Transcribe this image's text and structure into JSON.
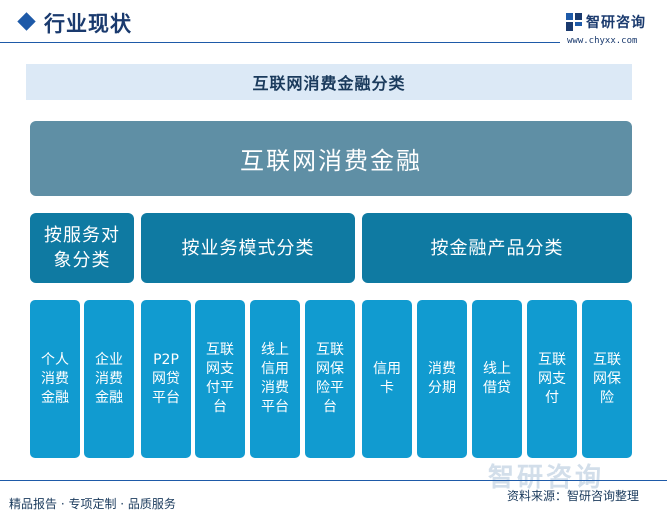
{
  "header": {
    "title": "行业现状",
    "logo_name": "智研咨询",
    "logo_url": "www.chyxx.com"
  },
  "banner": {
    "title": "互联网消费金融分类"
  },
  "root": {
    "label": "互联网消费金融"
  },
  "categories": [
    {
      "label": "按服务对象分类"
    },
    {
      "label": "按业务模式分类"
    },
    {
      "label": "按金融产品分类"
    }
  ],
  "leaves": [
    {
      "label": "个人消费金融"
    },
    {
      "label": "企业消费金融"
    },
    {
      "label": "P2P网贷平台"
    },
    {
      "label": "互联网支付平台"
    },
    {
      "label": "线上信用消费平台"
    },
    {
      "label": "互联网保险平台"
    },
    {
      "label": "信用卡"
    },
    {
      "label": "消费分期"
    },
    {
      "label": "线上借贷"
    },
    {
      "label": "互联网支付"
    },
    {
      "label": "互联网保险"
    }
  ],
  "footer": {
    "left": "精品报告 · 专项定制 · 品质服务",
    "source": "资料来源：智研咨询整理",
    "watermark": "智研咨询"
  },
  "colors": {
    "root": "#5f8fa5",
    "category": "#0f7aa2",
    "leaf": "#119bd0",
    "banner": "#dce9f6"
  }
}
